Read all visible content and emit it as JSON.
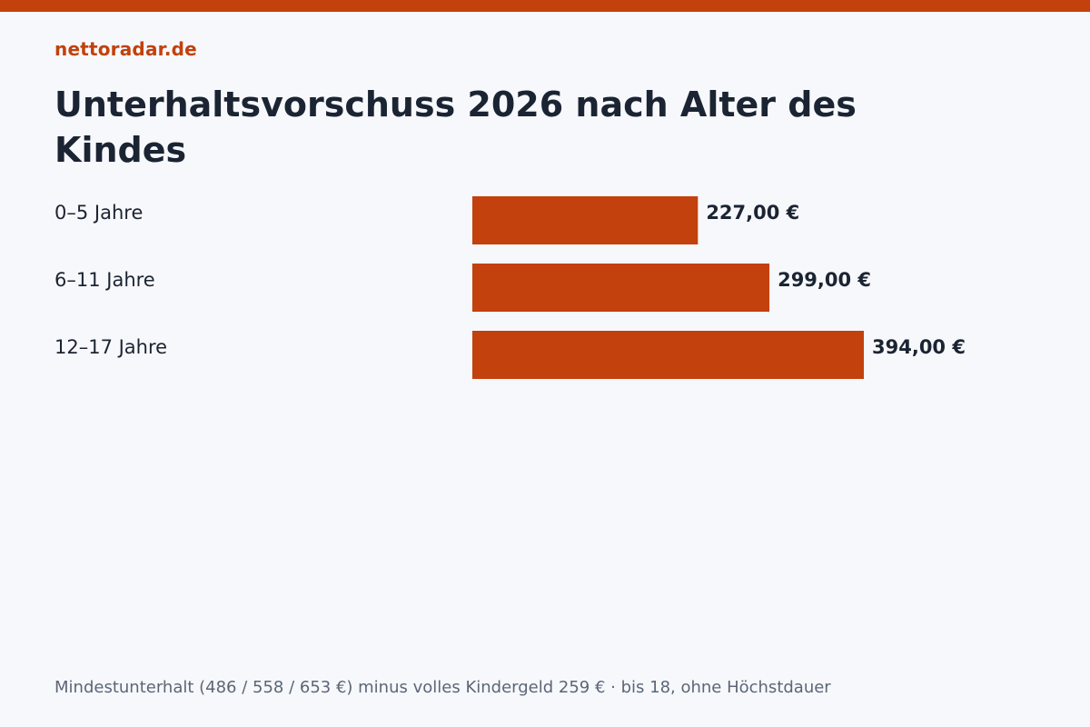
{
  "brand": "nettoradar.de",
  "title": "Unterhaltsvorschuss 2026 nach Alter des Kindes",
  "footnote": "Mindestunterhalt (486 / 558 / 653 €) minus volles Kindergeld 259 € · bis 18, ohne Höchstdauer",
  "colors": {
    "accent": "#c2410c",
    "text": "#1b2433",
    "muted": "#5b6678",
    "background": "#f7f8fb"
  },
  "chart_data": {
    "type": "bar",
    "orientation": "horizontal",
    "categories": [
      "0–5 Jahre",
      "6–11 Jahre",
      "12–17 Jahre"
    ],
    "values": [
      227,
      299,
      394
    ],
    "value_labels": [
      "227,00 €",
      "299,00 €",
      "394,00 €"
    ],
    "title": "Unterhaltsvorschuss 2026 nach Alter des Kindes",
    "xlabel": "",
    "ylabel": "",
    "grid": false,
    "legend": "none"
  }
}
